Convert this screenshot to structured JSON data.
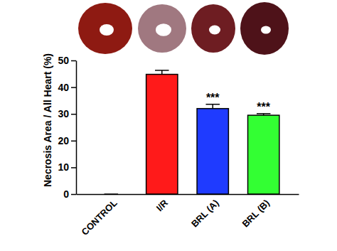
{
  "chart_data": {
    "type": "bar",
    "y_label": "Necrosis Area / All Heart (%)",
    "categories": [
      "CONTROL",
      "I/R",
      "BRL (A)",
      "BRL (B)"
    ],
    "values": [
      0,
      44.8,
      32.0,
      29.5
    ],
    "errors": [
      0,
      1.5,
      1.6,
      0.6
    ],
    "colors": [
      "#888888",
      "#ff1a1a",
      "#1f3bff",
      "#33ff33"
    ],
    "annotations": [
      null,
      null,
      "***",
      "***"
    ],
    "ylim": [
      0,
      50
    ],
    "yticks": [
      0,
      10,
      20,
      30,
      40,
      50
    ],
    "grid": false
  }
}
